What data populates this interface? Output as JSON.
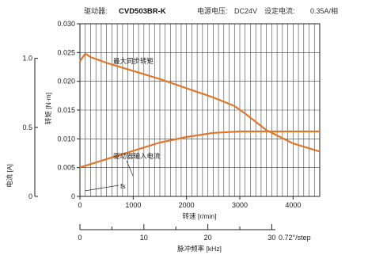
{
  "header": {
    "driver_label": "驱动器:",
    "driver_value": "CVD503BR-K",
    "voltage_label": "电源电压:",
    "voltage_value": "DC24V",
    "current_label": "设定电流:",
    "current_value": "0.35A/相"
  },
  "chart_data": {
    "type": "line",
    "xlabel": "转速 [r/min]",
    "ylabel": "转矩 [N·m]",
    "xlim": [
      0,
      4500
    ],
    "ylim": [
      0,
      0.03
    ],
    "x_ticks": [
      "0",
      "1000",
      "2000",
      "3000",
      "4000"
    ],
    "y_ticks": [
      "0",
      "0.005",
      "0.010",
      "0.015",
      "0.020",
      "0.025",
      "0.030"
    ],
    "grid": "vertical-dense",
    "secondary_y": {
      "label": "电流 [A]",
      "ylim": [
        0,
        1.25
      ],
      "ticks": [
        "0",
        "0.5",
        "1.0"
      ]
    },
    "secondary_x": {
      "label": "脉冲频率 [kHz]",
      "ticks": [
        "0",
        "10",
        "20",
        "30"
      ],
      "suffix": "0.72°/step"
    },
    "series": [
      {
        "name": "最大同步转矩",
        "axis": "torque",
        "color": "#e0782c",
        "points": [
          [
            0,
            0.0235
          ],
          [
            100,
            0.0248
          ],
          [
            200,
            0.0242
          ],
          [
            500,
            0.0232
          ],
          [
            1000,
            0.0218
          ],
          [
            1500,
            0.0204
          ],
          [
            2000,
            0.0188
          ],
          [
            2500,
            0.0172
          ],
          [
            2900,
            0.0157
          ],
          [
            3100,
            0.0144
          ],
          [
            3500,
            0.0115
          ],
          [
            4000,
            0.0092
          ],
          [
            4500,
            0.0078
          ]
        ]
      },
      {
        "name": "驱动器输入电流",
        "axis": "current",
        "color": "#e0782c",
        "points": [
          [
            0,
            0.21
          ],
          [
            500,
            0.27
          ],
          [
            1000,
            0.33
          ],
          [
            1500,
            0.39
          ],
          [
            2000,
            0.43
          ],
          [
            2500,
            0.46
          ],
          [
            3000,
            0.47
          ],
          [
            3500,
            0.47
          ],
          [
            4000,
            0.47
          ],
          [
            4500,
            0.47
          ]
        ]
      }
    ],
    "annotations": [
      "fs"
    ]
  }
}
